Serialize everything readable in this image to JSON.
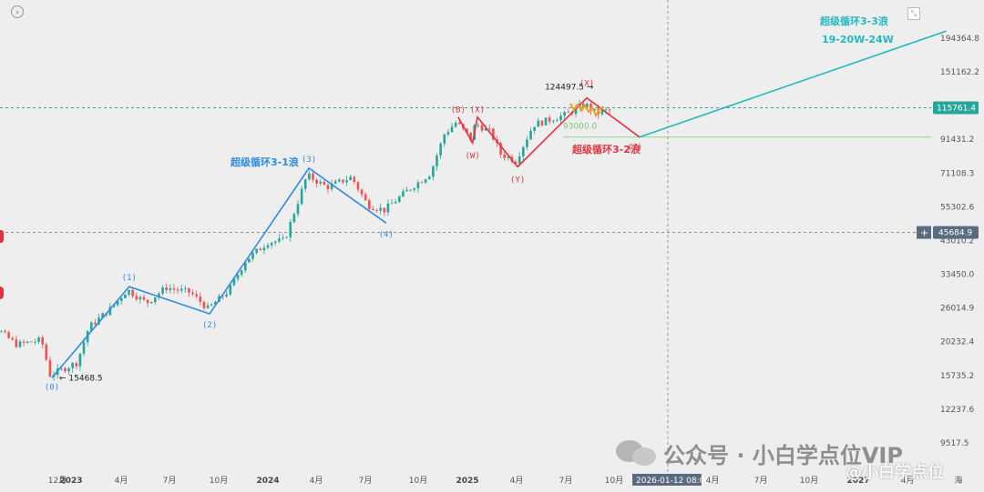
{
  "chart_data": {
    "type": "candlestick",
    "yscale": "log",
    "y_ticks": [
      "194364.8",
      "151162.2",
      "115761.4",
      "91431.2",
      "71108.3",
      "55302.6",
      "45684.9",
      "43010.2",
      "33450.0",
      "26014.9",
      "20232.4",
      "15735.2",
      "12237.6",
      "9517.5"
    ],
    "x_ticks": [
      "12月",
      "2023",
      "4月",
      "7月",
      "10月",
      "2024",
      "4月",
      "7月",
      "10月",
      "2025",
      "4月",
      "7月",
      "10月",
      "2026-01-12 08:00",
      "4月",
      "7月",
      "10月",
      "2027",
      "4月",
      "海"
    ],
    "price_labels": {
      "current": "115761.4",
      "cursor": "45684.9"
    },
    "annotations": {
      "low_label": "15468.5",
      "high_label": "124497.5",
      "support_label": "93000.0",
      "wave_1": "超级循环3-1浪",
      "wave_2": "超级循环3-2浪",
      "wave_3_title": "超级循环3-3浪",
      "wave_3_sub": "19-20W-24W"
    },
    "wave_blue": [
      {
        "label": "(0)",
        "date": "2022-11-21",
        "price": 15468
      },
      {
        "label": "(1)",
        "date": "2023-04-14",
        "price": 30500
      },
      {
        "label": "(2)",
        "date": "2023-09-11",
        "price": 24900
      },
      {
        "label": "(3)",
        "date": "2024-03-14",
        "price": 73800
      },
      {
        "label": "(4)",
        "date": "2024-08-05",
        "price": 49000
      }
    ],
    "wave_red": [
      {
        "label": "(B)",
        "date": "2024-12-17",
        "price": 108000
      },
      {
        "label": "(W)",
        "date": "2025-01-13",
        "price": 89000
      },
      {
        "label": "(X)",
        "date": "2025-01-22",
        "price": 108000
      },
      {
        "label": "(Y)",
        "date": "2025-04-07",
        "price": 74500
      },
      {
        "label": "(X)",
        "date": "2025-08-14",
        "price": 124497.5
      },
      {
        "label": "(Z)",
        "date": "2025-11-20",
        "price": 93000
      }
    ],
    "wave_cyan_target": {
      "date": "2027-06-15",
      "price": 205000
    },
    "hlines": {
      "current": 115761.4,
      "cursor": 45684.9,
      "support": 93000
    },
    "vline_date": "2026-01-12",
    "colors": {
      "up": "#26a69a",
      "down": "#ef5350",
      "blue": "#2f8be0",
      "red": "#e0333e",
      "cyan": "#22b8c0",
      "support": "#8bd48b",
      "orange": "#f0a020"
    }
  },
  "ui": {
    "watermark_main": "公众号 · 小白学点位VIP",
    "watermark_sub": "@小白学点位",
    "cursor_plus": "+"
  }
}
